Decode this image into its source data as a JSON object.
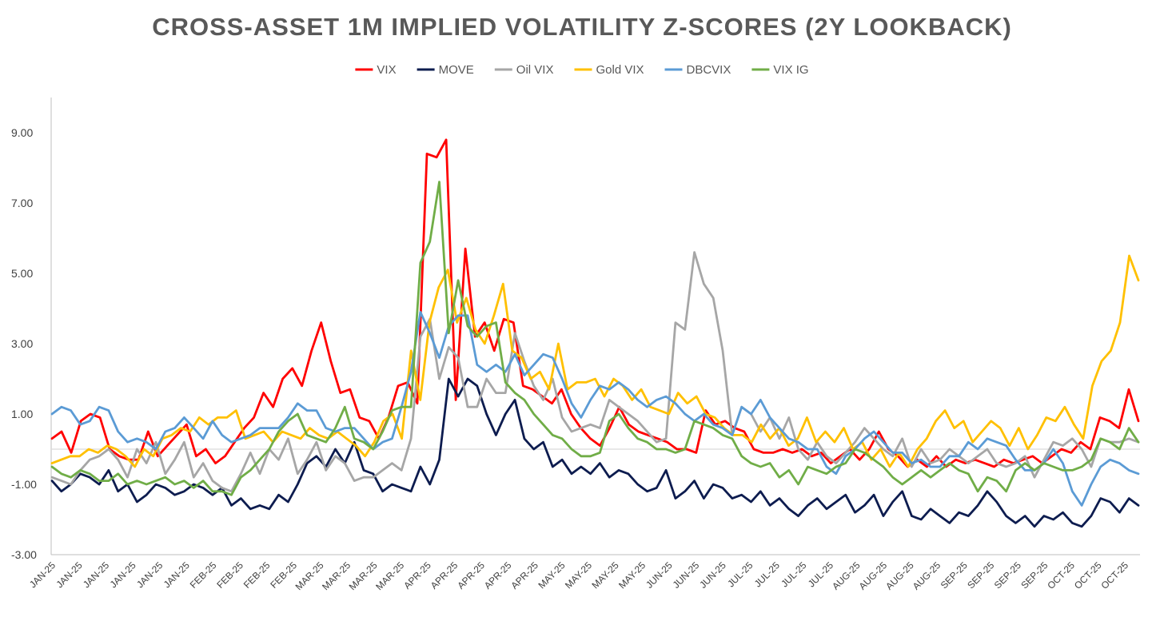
{
  "chart_data": {
    "type": "line",
    "title": "CROSS-ASSET 1M IMPLIED VOLATILITY Z-SCORES (2Y LOOKBACK)",
    "xlabel": "",
    "ylabel": "",
    "ylim": [
      -3,
      10
    ],
    "yticks": [
      "9.00",
      "7.00",
      "5.00",
      "3.00",
      "1.00",
      "-1.00",
      "-3.00"
    ],
    "ytick_values": [
      9,
      7,
      5,
      3,
      1,
      -1,
      -3
    ],
    "xticks": [
      "JAN-25",
      "JAN-25",
      "JAN-25",
      "JAN-25",
      "JAN-25",
      "JAN-25",
      "FEB-25",
      "FEB-25",
      "FEB-25",
      "FEB-25",
      "MAR-25",
      "MAR-25",
      "MAR-25",
      "MAR-25",
      "APR-25",
      "APR-25",
      "APR-25",
      "APR-25",
      "APR-25",
      "MAY-25",
      "MAY-25",
      "MAY-25",
      "MAY-25",
      "JUN-25",
      "JUN-25",
      "JUN-25",
      "JUL-25",
      "JUL-25",
      "JUL-25",
      "JUL-25",
      "AUG-25",
      "AUG-25",
      "AUG-25",
      "AUG-25",
      "SEP-25",
      "SEP-25",
      "SEP-25",
      "SEP-25",
      "OCT-25",
      "OCT-25",
      "OCT-25"
    ],
    "legend_position": "top",
    "grid": false,
    "zero_line": true,
    "series": [
      {
        "name": "VIX",
        "color": "#ff0000",
        "values": [
          0.3,
          0.5,
          -0.1,
          0.8,
          1.0,
          0.9,
          0.0,
          -0.2,
          -0.3,
          -0.3,
          0.5,
          -0.2,
          0.1,
          0.4,
          0.7,
          -0.2,
          0.0,
          -0.4,
          -0.2,
          0.2,
          0.6,
          0.9,
          1.6,
          1.2,
          2.0,
          2.3,
          1.8,
          2.8,
          3.6,
          2.5,
          1.6,
          1.7,
          0.9,
          0.8,
          0.3,
          0.9,
          1.8,
          1.9,
          1.3,
          8.4,
          8.3,
          8.8,
          1.4,
          5.7,
          3.2,
          3.6,
          2.8,
          3.7,
          3.6,
          1.8,
          1.7,
          1.5,
          1.3,
          1.7,
          1.0,
          0.6,
          0.3,
          0.1,
          0.6,
          1.2,
          0.7,
          0.5,
          0.4,
          0.3,
          0.2,
          0.0,
          0.0,
          -0.1,
          1.1,
          0.7,
          0.8,
          0.6,
          0.5,
          0.0,
          -0.1,
          -0.1,
          0.0,
          -0.1,
          0.0,
          -0.2,
          -0.1,
          -0.4,
          -0.2,
          0.0,
          -0.3,
          0.0,
          0.5,
          0.0,
          -0.2,
          -0.5,
          -0.3,
          -0.5,
          -0.2,
          -0.5,
          -0.3,
          -0.4,
          -0.3,
          -0.4,
          -0.5,
          -0.3,
          -0.4,
          -0.3,
          -0.2,
          -0.4,
          -0.2,
          0.0,
          -0.1,
          0.2,
          0.0,
          0.9,
          0.8,
          0.6,
          1.7,
          0.8
        ]
      },
      {
        "name": "MOVE",
        "color": "#0d1c4f",
        "values": [
          -0.9,
          -1.2,
          -1.0,
          -0.7,
          -0.8,
          -1.0,
          -0.6,
          -1.2,
          -1.0,
          -1.5,
          -1.3,
          -1.0,
          -1.1,
          -1.3,
          -1.2,
          -1.0,
          -1.1,
          -1.3,
          -1.1,
          -1.6,
          -1.4,
          -1.7,
          -1.6,
          -1.7,
          -1.3,
          -1.5,
          -1.0,
          -0.4,
          -0.2,
          -0.5,
          0.0,
          -0.4,
          0.2,
          -0.6,
          -0.7,
          -1.2,
          -1.0,
          -1.1,
          -1.2,
          -0.5,
          -1.0,
          -0.3,
          2.0,
          1.5,
          2.0,
          1.8,
          1.0,
          0.4,
          1.0,
          1.4,
          0.3,
          0.0,
          0.2,
          -0.5,
          -0.3,
          -0.7,
          -0.5,
          -0.7,
          -0.4,
          -0.8,
          -0.6,
          -0.7,
          -1.0,
          -1.2,
          -1.1,
          -0.6,
          -1.4,
          -1.2,
          -0.9,
          -1.4,
          -1.0,
          -1.1,
          -1.4,
          -1.3,
          -1.5,
          -1.2,
          -1.6,
          -1.4,
          -1.7,
          -1.9,
          -1.6,
          -1.4,
          -1.7,
          -1.5,
          -1.3,
          -1.8,
          -1.6,
          -1.3,
          -1.9,
          -1.5,
          -1.2,
          -1.9,
          -2.0,
          -1.7,
          -1.9,
          -2.1,
          -1.8,
          -1.9,
          -1.6,
          -1.2,
          -1.5,
          -1.9,
          -2.1,
          -1.9,
          -2.2,
          -1.9,
          -2.0,
          -1.8,
          -2.1,
          -2.2,
          -1.9,
          -1.4,
          -1.5,
          -1.8,
          -1.4,
          -1.6
        ]
      },
      {
        "name": "Oil VIX",
        "color": "#a6a6a6",
        "values": [
          -0.8,
          -0.9,
          -1.0,
          -0.6,
          -0.3,
          -0.2,
          0.0,
          -0.3,
          -0.8,
          0.0,
          -0.4,
          0.2,
          -0.7,
          -0.3,
          0.2,
          -0.8,
          -0.4,
          -0.9,
          -1.1,
          -1.2,
          -0.7,
          -0.1,
          -0.7,
          0.0,
          -0.3,
          0.3,
          -0.7,
          -0.3,
          0.2,
          -0.6,
          -0.2,
          -0.4,
          -0.9,
          -0.8,
          -0.8,
          -0.6,
          -0.4,
          -0.6,
          0.3,
          3.2,
          3.7,
          2.0,
          2.9,
          2.6,
          1.2,
          1.2,
          2.0,
          1.6,
          1.6,
          3.3,
          2.5,
          1.8,
          1.4,
          2.0,
          0.9,
          0.5,
          0.6,
          0.7,
          0.6,
          1.4,
          1.2,
          1.0,
          0.8,
          0.5,
          0.2,
          0.3,
          3.6,
          3.4,
          5.6,
          4.7,
          4.3,
          2.8,
          0.4,
          1.2,
          1.0,
          0.5,
          0.9,
          0.3,
          0.9,
          0.0,
          -0.3,
          0.2,
          -0.2,
          -0.4,
          -0.1,
          0.2,
          0.6,
          0.3,
          0.0,
          -0.2,
          0.3,
          -0.5,
          0.0,
          -0.4,
          -0.3,
          0.0,
          -0.2,
          -0.4,
          -0.2,
          0.0,
          -0.4,
          -0.5,
          -0.4,
          -0.2,
          -0.8,
          -0.3,
          0.2,
          0.1,
          0.3,
          0.0,
          -0.5,
          0.3,
          0.2,
          0.2,
          0.3,
          0.2
        ]
      },
      {
        "name": "Gold VIX",
        "color": "#ffc000",
        "values": [
          -0.4,
          -0.3,
          -0.2,
          -0.2,
          0.0,
          -0.1,
          0.1,
          0.0,
          -0.2,
          -0.5,
          0.0,
          -0.2,
          0.3,
          0.4,
          0.6,
          0.5,
          0.9,
          0.7,
          0.9,
          0.9,
          1.1,
          0.3,
          0.4,
          0.5,
          0.2,
          0.5,
          0.4,
          0.3,
          0.6,
          0.4,
          0.3,
          0.5,
          0.3,
          0.1,
          -0.2,
          0.2,
          0.8,
          1.0,
          0.3,
          2.8,
          1.4,
          3.6,
          4.6,
          5.1,
          3.6,
          4.3,
          3.4,
          3.0,
          3.8,
          4.7,
          2.8,
          2.6,
          2.0,
          2.2,
          1.7,
          3.0,
          1.7,
          1.9,
          1.9,
          2.0,
          1.5,
          2.0,
          1.8,
          1.4,
          1.7,
          1.2,
          1.1,
          1.0,
          1.6,
          1.3,
          1.5,
          1.0,
          0.9,
          0.6,
          0.4,
          0.4,
          0.2,
          0.7,
          0.3,
          0.6,
          0.1,
          0.3,
          0.9,
          0.2,
          0.5,
          0.2,
          0.6,
          0.0,
          0.2,
          -0.3,
          0.0,
          -0.5,
          -0.1,
          -0.5,
          0.0,
          0.3,
          0.8,
          1.1,
          0.6,
          0.8,
          0.2,
          0.5,
          0.8,
          0.6,
          0.1,
          0.6,
          0.0,
          0.4,
          0.9,
          0.8,
          1.2,
          0.7,
          0.3,
          1.8,
          2.5,
          2.8,
          3.6,
          5.5,
          4.8
        ]
      },
      {
        "name": "DBCVIX",
        "color": "#5b9bd5",
        "values": [
          1.0,
          1.2,
          1.1,
          0.7,
          0.8,
          1.2,
          1.1,
          0.5,
          0.2,
          0.3,
          0.2,
          0.0,
          0.5,
          0.6,
          0.9,
          0.6,
          0.3,
          0.8,
          0.4,
          0.2,
          0.3,
          0.4,
          0.6,
          0.6,
          0.6,
          0.9,
          1.3,
          1.1,
          1.1,
          0.6,
          0.5,
          0.6,
          0.6,
          0.3,
          0.0,
          0.2,
          0.3,
          1.2,
          2.2,
          3.9,
          3.3,
          2.6,
          3.5,
          3.8,
          3.8,
          2.4,
          2.2,
          2.4,
          2.2,
          2.7,
          2.1,
          2.4,
          2.7,
          2.6,
          2.0,
          1.3,
          0.9,
          1.4,
          1.8,
          1.7,
          1.9,
          1.7,
          1.4,
          1.2,
          1.4,
          1.5,
          1.3,
          1.0,
          0.8,
          1.0,
          0.7,
          0.6,
          0.4,
          1.2,
          1.0,
          1.4,
          0.9,
          0.6,
          0.3,
          0.2,
          0.0,
          0.0,
          -0.5,
          -0.7,
          -0.2,
          0.0,
          0.3,
          0.5,
          0.2,
          -0.1,
          -0.1,
          -0.4,
          -0.3,
          -0.5,
          -0.5,
          -0.2,
          -0.2,
          0.2,
          0.0,
          0.3,
          0.2,
          0.1,
          -0.3,
          -0.6,
          -0.6,
          -0.4,
          0.0,
          -0.4,
          -1.2,
          -1.6,
          -1.0,
          -0.5,
          -0.3,
          -0.4,
          -0.6,
          -0.7
        ]
      },
      {
        "name": "VIX IG",
        "color": "#70ad47",
        "values": [
          -0.5,
          -0.7,
          -0.8,
          -0.6,
          -0.7,
          -0.9,
          -0.9,
          -0.7,
          -1.0,
          -0.9,
          -1.0,
          -0.9,
          -0.8,
          -1.0,
          -0.9,
          -1.1,
          -0.9,
          -1.2,
          -1.2,
          -1.3,
          -0.8,
          -0.6,
          -0.3,
          0.0,
          0.5,
          0.8,
          1.0,
          0.4,
          0.3,
          0.2,
          0.6,
          1.2,
          0.3,
          0.2,
          0.0,
          0.5,
          1.1,
          1.2,
          1.2,
          5.3,
          5.9,
          7.6,
          3.3,
          4.8,
          3.5,
          3.2,
          3.5,
          3.6,
          1.9,
          1.6,
          1.4,
          1.0,
          0.7,
          0.4,
          0.3,
          0.0,
          -0.2,
          -0.2,
          -0.1,
          0.8,
          1.0,
          0.6,
          0.3,
          0.2,
          0.0,
          0.0,
          -0.1,
          0.0,
          0.8,
          0.7,
          0.6,
          0.4,
          0.3,
          -0.2,
          -0.4,
          -0.5,
          -0.4,
          -0.8,
          -0.6,
          -1.0,
          -0.5,
          -0.6,
          -0.7,
          -0.5,
          -0.4,
          0.0,
          -0.1,
          -0.3,
          -0.5,
          -0.8,
          -1.0,
          -0.8,
          -0.6,
          -0.8,
          -0.6,
          -0.4,
          -0.6,
          -0.7,
          -1.2,
          -0.8,
          -0.9,
          -1.2,
          -0.6,
          -0.4,
          -0.6,
          -0.4,
          -0.5,
          -0.6,
          -0.6,
          -0.5,
          -0.3,
          0.3,
          0.2,
          0.0,
          0.6,
          0.2
        ]
      }
    ]
  }
}
